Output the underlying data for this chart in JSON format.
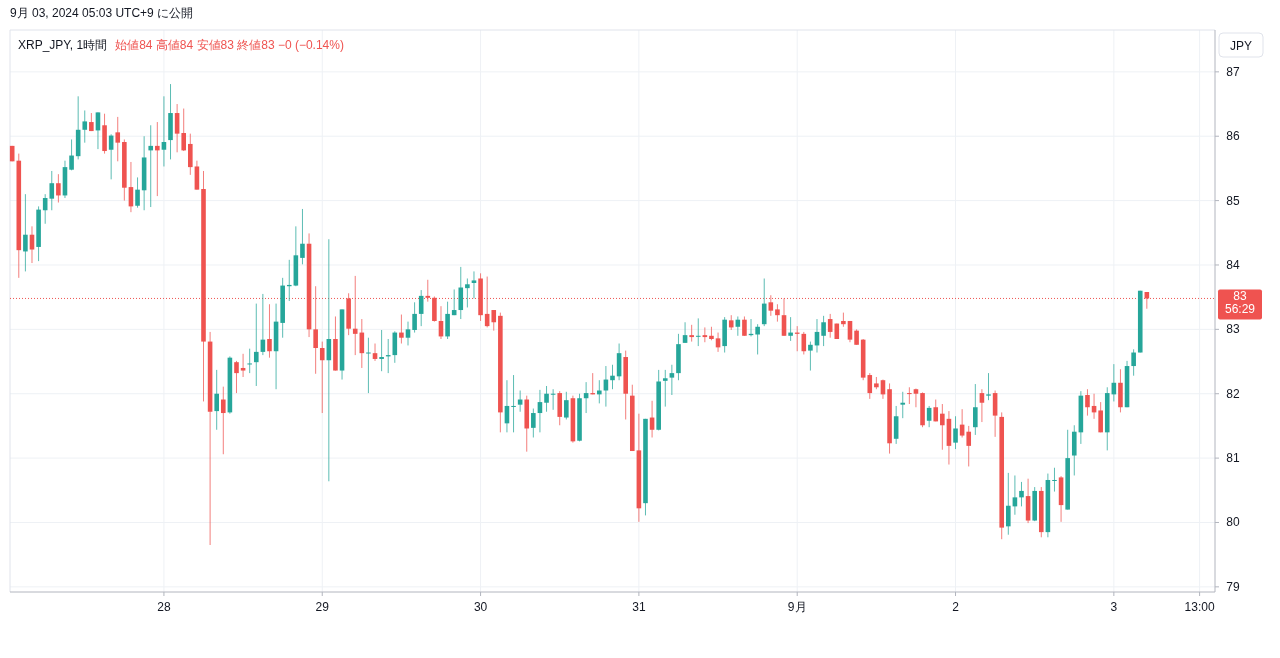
{
  "chart_data": {
    "type": "candlestick",
    "title": "XRP_JPY, 1時間",
    "subtitle": "始値84 高値84 安値83 終値83 −0 (−0.14%)",
    "ylabel": "JPY",
    "annotations": [
      "9月 03, 2024 05:03 UTC+9 に公開"
    ],
    "x": [
      "2024-08-27T01:00",
      "2024-08-27T02:00",
      "2024-08-27T03:00",
      "2024-08-27T04:00",
      "2024-08-27T05:00",
      "2024-08-27T06:00",
      "2024-08-27T07:00",
      "2024-08-27T08:00",
      "2024-08-27T09:00",
      "2024-08-27T10:00",
      "2024-08-27T11:00",
      "2024-08-27T12:00",
      "2024-08-27T13:00",
      "2024-08-27T14:00",
      "2024-08-27T15:00",
      "2024-08-27T16:00",
      "2024-08-27T17:00",
      "2024-08-27T18:00",
      "2024-08-27T19:00",
      "2024-08-27T20:00",
      "2024-08-27T21:00",
      "2024-08-27T22:00",
      "2024-08-27T23:00",
      "2024-08-28T00:00",
      "2024-08-28T01:00",
      "2024-08-28T02:00",
      "2024-08-28T03:00",
      "2024-08-28T04:00",
      "2024-08-28T05:00",
      "2024-08-28T06:00",
      "2024-08-28T07:00",
      "2024-08-28T08:00",
      "2024-08-28T09:00",
      "2024-08-28T10:00",
      "2024-08-28T11:00",
      "2024-08-28T12:00",
      "2024-08-28T13:00",
      "2024-08-28T14:00",
      "2024-08-28T15:00",
      "2024-08-28T16:00",
      "2024-08-28T17:00",
      "2024-08-28T18:00",
      "2024-08-28T19:00",
      "2024-08-28T20:00",
      "2024-08-28T21:00",
      "2024-08-28T22:00",
      "2024-08-28T23:00",
      "2024-08-29T00:00",
      "2024-08-29T01:00",
      "2024-08-29T02:00",
      "2024-08-29T03:00",
      "2024-08-29T04:00",
      "2024-08-29T05:00",
      "2024-08-29T06:00",
      "2024-08-29T07:00",
      "2024-08-29T08:00",
      "2024-08-29T09:00",
      "2024-08-29T10:00",
      "2024-08-29T11:00",
      "2024-08-29T12:00",
      "2024-08-29T13:00",
      "2024-08-29T14:00",
      "2024-08-29T15:00",
      "2024-08-29T16:00",
      "2024-08-29T17:00",
      "2024-08-29T18:00",
      "2024-08-29T19:00",
      "2024-08-29T20:00",
      "2024-08-29T21:00",
      "2024-08-29T22:00",
      "2024-08-29T23:00",
      "2024-08-30T00:00",
      "2024-08-30T01:00",
      "2024-08-30T02:00",
      "2024-08-30T03:00",
      "2024-08-30T04:00",
      "2024-08-30T05:00",
      "2024-08-30T06:00",
      "2024-08-30T07:00",
      "2024-08-30T08:00",
      "2024-08-30T09:00",
      "2024-08-30T10:00",
      "2024-08-30T11:00",
      "2024-08-30T12:00",
      "2024-08-30T13:00",
      "2024-08-30T14:00",
      "2024-08-30T15:00",
      "2024-08-30T16:00",
      "2024-08-30T17:00",
      "2024-08-30T18:00",
      "2024-08-30T19:00",
      "2024-08-30T20:00",
      "2024-08-30T21:00",
      "2024-08-30T22:00",
      "2024-08-30T23:00",
      "2024-08-31T00:00",
      "2024-08-31T01:00",
      "2024-08-31T02:00",
      "2024-08-31T03:00",
      "2024-08-31T04:00",
      "2024-08-31T05:00",
      "2024-08-31T06:00",
      "2024-08-31T07:00",
      "2024-08-31T08:00",
      "2024-08-31T09:00",
      "2024-08-31T10:00",
      "2024-08-31T11:00",
      "2024-08-31T12:00",
      "2024-08-31T13:00",
      "2024-08-31T14:00",
      "2024-08-31T15:00",
      "2024-08-31T16:00",
      "2024-08-31T17:00",
      "2024-08-31T18:00",
      "2024-08-31T19:00",
      "2024-08-31T20:00",
      "2024-08-31T21:00",
      "2024-08-31T22:00",
      "2024-08-31T23:00",
      "2024-09-01T00:00",
      "2024-09-01T01:00",
      "2024-09-01T02:00",
      "2024-09-01T03:00",
      "2024-09-01T04:00",
      "2024-09-01T05:00",
      "2024-09-01T06:00",
      "2024-09-01T07:00",
      "2024-09-01T08:00",
      "2024-09-01T09:00",
      "2024-09-01T10:00",
      "2024-09-01T11:00",
      "2024-09-01T12:00",
      "2024-09-01T13:00",
      "2024-09-01T14:00",
      "2024-09-01T15:00",
      "2024-09-01T16:00",
      "2024-09-01T17:00",
      "2024-09-01T18:00",
      "2024-09-01T19:00",
      "2024-09-01T20:00",
      "2024-09-01T21:00",
      "2024-09-01T22:00",
      "2024-09-01T23:00",
      "2024-09-02T00:00",
      "2024-09-02T01:00",
      "2024-09-02T02:00",
      "2024-09-02T03:00",
      "2024-09-02T04:00",
      "2024-09-02T05:00",
      "2024-09-02T06:00",
      "2024-09-02T07:00",
      "2024-09-02T08:00",
      "2024-09-02T09:00",
      "2024-09-02T10:00",
      "2024-09-02T11:00",
      "2024-09-02T12:00",
      "2024-09-02T13:00",
      "2024-09-02T14:00",
      "2024-09-02T15:00",
      "2024-09-02T16:00",
      "2024-09-02T17:00",
      "2024-09-02T18:00",
      "2024-09-02T19:00",
      "2024-09-02T20:00",
      "2024-09-02T21:00",
      "2024-09-02T22:00",
      "2024-09-02T23:00",
      "2024-09-03T00:00",
      "2024-09-03T01:00",
      "2024-09-03T02:00",
      "2024-09-03T03:00",
      "2024-09-03T04:00",
      "2024-09-03T05:00"
    ],
    "ohlc": [
      [
        85.85,
        85.85,
        85.61,
        85.61
      ],
      [
        85.62,
        85.73,
        83.8,
        84.23
      ],
      [
        84.21,
        85.1,
        83.9,
        84.47
      ],
      [
        84.47,
        84.6,
        84.03,
        84.24
      ],
      [
        84.28,
        84.91,
        84.06,
        84.86
      ],
      [
        84.85,
        85.1,
        84.64,
        85.04
      ],
      [
        85.03,
        85.46,
        84.85,
        85.27
      ],
      [
        85.27,
        85.41,
        84.97,
        85.08
      ],
      [
        85.08,
        85.62,
        85.04,
        85.52
      ],
      [
        85.48,
        85.95,
        85.47,
        85.7
      ],
      [
        85.69,
        86.62,
        85.64,
        86.1
      ],
      [
        86.1,
        86.4,
        85.9,
        86.23
      ],
      [
        86.22,
        86.36,
        86.08,
        86.08
      ],
      [
        86.09,
        86.37,
        85.8,
        86.37
      ],
      [
        86.17,
        86.35,
        85.73,
        85.77
      ],
      [
        85.79,
        86.03,
        85.33,
        86.01
      ],
      [
        86.06,
        86.3,
        85.61,
        85.9
      ],
      [
        85.91,
        85.95,
        85.0,
        85.2
      ],
      [
        85.21,
        85.6,
        84.82,
        84.91
      ],
      [
        84.92,
        85.36,
        84.89,
        85.17
      ],
      [
        85.16,
        86.0,
        84.85,
        85.67
      ],
      [
        85.78,
        86.17,
        84.9,
        85.85
      ],
      [
        85.85,
        86.22,
        85.07,
        85.78
      ],
      [
        85.79,
        86.62,
        85.53,
        85.91
      ],
      [
        85.94,
        86.81,
        85.64,
        86.36
      ],
      [
        86.36,
        86.5,
        85.75,
        86.04
      ],
      [
        86.05,
        86.43,
        85.77,
        85.78
      ],
      [
        85.88,
        86.04,
        85.4,
        85.52
      ],
      [
        85.53,
        85.62,
        85.17,
        85.17
      ],
      [
        85.18,
        85.46,
        81.88,
        82.81
      ],
      [
        82.81,
        82.96,
        79.65,
        81.72
      ],
      [
        81.73,
        82.37,
        81.44,
        82.0
      ],
      [
        81.91,
        82.11,
        81.06,
        81.7
      ],
      [
        81.71,
        82.58,
        81.69,
        82.56
      ],
      [
        82.49,
        82.51,
        82.01,
        82.32
      ],
      [
        82.4,
        82.62,
        82.26,
        82.36
      ],
      [
        82.46,
        82.7,
        82.32,
        82.47
      ],
      [
        82.49,
        83.4,
        82.12,
        82.65
      ],
      [
        82.65,
        83.55,
        82.6,
        82.84
      ],
      [
        82.85,
        83.39,
        82.56,
        82.66
      ],
      [
        82.66,
        83.4,
        82.07,
        83.12
      ],
      [
        83.1,
        83.8,
        82.87,
        83.68
      ],
      [
        83.67,
        84.08,
        83.44,
        83.69
      ],
      [
        83.68,
        84.6,
        83.67,
        84.15
      ],
      [
        84.11,
        84.87,
        84.01,
        84.33
      ],
      [
        84.33,
        84.49,
        82.88,
        83.0
      ],
      [
        83.0,
        83.67,
        82.31,
        82.71
      ],
      [
        82.71,
        82.81,
        81.7,
        82.52
      ],
      [
        82.52,
        84.4,
        80.64,
        82.85
      ],
      [
        82.85,
        83.2,
        82.36,
        82.36
      ],
      [
        82.36,
        83.31,
        82.22,
        83.31
      ],
      [
        83.48,
        83.56,
        82.91,
        83.01
      ],
      [
        83.01,
        83.83,
        82.6,
        82.93
      ],
      [
        82.95,
        83.16,
        82.4,
        82.63
      ],
      [
        82.63,
        82.87,
        82.01,
        82.64
      ],
      [
        82.63,
        82.78,
        82.51,
        82.54
      ],
      [
        82.54,
        82.99,
        82.35,
        82.57
      ],
      [
        82.58,
        82.85,
        82.32,
        82.6
      ],
      [
        82.6,
        82.97,
        82.48,
        82.95
      ],
      [
        82.95,
        83.23,
        82.78,
        82.87
      ],
      [
        82.87,
        83.12,
        82.75,
        83.0
      ],
      [
        82.99,
        83.42,
        82.95,
        83.24
      ],
      [
        83.24,
        83.61,
        83.05,
        83.52
      ],
      [
        83.52,
        83.77,
        83.43,
        83.49
      ],
      [
        83.49,
        83.51,
        83.12,
        83.13
      ],
      [
        83.13,
        83.36,
        82.85,
        82.89
      ],
      [
        82.89,
        83.43,
        82.85,
        83.24
      ],
      [
        83.22,
        83.62,
        83.22,
        83.3
      ],
      [
        83.3,
        83.97,
        83.16,
        83.65
      ],
      [
        83.64,
        83.79,
        83.34,
        83.7
      ],
      [
        83.72,
        83.9,
        83.48,
        83.76
      ],
      [
        83.79,
        83.87,
        83.13,
        83.22
      ],
      [
        83.24,
        83.82,
        83.03,
        83.05
      ],
      [
        83.3,
        83.3,
        82.98,
        83.11
      ],
      [
        83.21,
        83.26,
        81.4,
        81.71
      ],
      [
        81.54,
        82.21,
        81.4,
        81.81
      ],
      [
        81.8,
        82.29,
        81.4,
        81.81
      ],
      [
        81.83,
        82.05,
        81.72,
        81.91
      ],
      [
        81.91,
        81.97,
        81.1,
        81.46
      ],
      [
        81.47,
        81.77,
        81.32,
        81.7
      ],
      [
        81.7,
        82.06,
        81.4,
        81.87
      ],
      [
        81.86,
        82.12,
        81.72,
        82.0
      ],
      [
        81.99,
        82.07,
        81.75,
        82.0
      ],
      [
        82.01,
        82.04,
        81.51,
        81.64
      ],
      [
        81.63,
        82.03,
        81.6,
        81.9
      ],
      [
        81.93,
        81.97,
        81.24,
        81.26
      ],
      [
        81.27,
        82.0,
        81.26,
        81.93
      ],
      [
        81.93,
        82.18,
        81.7,
        82.01
      ],
      [
        82.01,
        82.32,
        81.99,
        81.99
      ],
      [
        81.99,
        82.21,
        81.85,
        82.05
      ],
      [
        82.05,
        82.43,
        81.8,
        82.22
      ],
      [
        82.21,
        82.45,
        82.07,
        82.28
      ],
      [
        82.27,
        82.78,
        82.21,
        82.63
      ],
      [
        82.57,
        82.67,
        81.6,
        82.0
      ],
      [
        81.97,
        82.14,
        81.11,
        81.11
      ],
      [
        81.12,
        81.69,
        80.01,
        80.22
      ],
      [
        80.3,
        81.61,
        80.11,
        81.61
      ],
      [
        81.63,
        81.89,
        81.32,
        81.44
      ],
      [
        81.44,
        82.37,
        81.43,
        82.19
      ],
      [
        82.2,
        82.37,
        81.8,
        82.24
      ],
      [
        82.25,
        82.45,
        81.98,
        82.32
      ],
      [
        82.32,
        82.93,
        82.21,
        82.77
      ],
      [
        82.79,
        83.11,
        82.79,
        82.91
      ],
      [
        82.91,
        83.07,
        82.81,
        82.88
      ],
      [
        82.89,
        83.17,
        82.74,
        82.9
      ],
      [
        82.91,
        83.03,
        82.8,
        82.88
      ],
      [
        82.9,
        83.04,
        82.83,
        82.85
      ],
      [
        82.86,
        82.95,
        82.65,
        82.72
      ],
      [
        82.74,
        83.19,
        82.64,
        83.15
      ],
      [
        83.14,
        83.22,
        82.99,
        83.03
      ],
      [
        83.04,
        83.2,
        82.9,
        83.15
      ],
      [
        83.15,
        83.2,
        82.9,
        82.9
      ],
      [
        82.91,
        83.16,
        82.89,
        82.93
      ],
      [
        82.92,
        83.08,
        82.61,
        83.04
      ],
      [
        83.08,
        83.79,
        83.05,
        83.4
      ],
      [
        83.42,
        83.53,
        83.21,
        83.29
      ],
      [
        83.31,
        83.39,
        83.12,
        83.22
      ],
      [
        83.22,
        83.48,
        82.9,
        82.9
      ],
      [
        82.9,
        83.19,
        82.82,
        82.95
      ],
      [
        82.95,
        83.05,
        82.66,
        82.93
      ],
      [
        82.93,
        82.96,
        82.61,
        82.66
      ],
      [
        82.67,
        82.81,
        82.36,
        82.76
      ],
      [
        82.75,
        83.16,
        82.64,
        82.96
      ],
      [
        82.9,
        83.21,
        82.74,
        83.11
      ],
      [
        83.16,
        83.24,
        82.87,
        82.96
      ],
      [
        83.09,
        83.09,
        82.85,
        82.85
      ],
      [
        83.13,
        83.26,
        83.04,
        83.08
      ],
      [
        83.13,
        83.13,
        82.8,
        82.84
      ],
      [
        82.98,
        83.0,
        82.76,
        82.76
      ],
      [
        82.84,
        82.85,
        82.21,
        82.25
      ],
      [
        82.29,
        82.32,
        81.92,
        82.01
      ],
      [
        82.16,
        82.26,
        82.07,
        82.1
      ],
      [
        82.21,
        82.22,
        81.92,
        81.99
      ],
      [
        82.07,
        82.16,
        81.07,
        81.23
      ],
      [
        81.3,
        81.81,
        81.22,
        81.65
      ],
      [
        81.83,
        82.03,
        81.62,
        81.86
      ],
      [
        82.01,
        82.1,
        81.84,
        82.0
      ],
      [
        82.07,
        82.08,
        81.79,
        82.0
      ],
      [
        82.01,
        82.02,
        81.48,
        81.51
      ],
      [
        81.58,
        81.81,
        81.48,
        81.78
      ],
      [
        81.79,
        81.91,
        81.57,
        81.57
      ],
      [
        81.69,
        81.84,
        81.13,
        81.51
      ],
      [
        81.61,
        81.73,
        80.9,
        81.19
      ],
      [
        81.24,
        81.65,
        81.14,
        81.46
      ],
      [
        81.52,
        81.76,
        81.32,
        81.35
      ],
      [
        81.41,
        81.5,
        80.87,
        81.19
      ],
      [
        81.48,
        82.15,
        81.36,
        81.79
      ],
      [
        82.01,
        82.07,
        81.56,
        81.86
      ],
      [
        81.97,
        82.32,
        81.9,
        81.99
      ],
      [
        82.01,
        82.05,
        81.33,
        81.66
      ],
      [
        81.64,
        81.71,
        79.74,
        79.92
      ],
      [
        79.94,
        80.77,
        79.81,
        80.26
      ],
      [
        80.25,
        80.73,
        80.12,
        80.39
      ],
      [
        80.39,
        80.63,
        80.25,
        80.49
      ],
      [
        80.41,
        80.68,
        79.99,
        80.03
      ],
      [
        80.03,
        80.55,
        80.02,
        80.49
      ],
      [
        80.49,
        80.55,
        79.77,
        79.85
      ],
      [
        79.85,
        80.76,
        79.77,
        80.66
      ],
      [
        80.65,
        80.85,
        80.48,
        80.66
      ],
      [
        80.7,
        80.72,
        80.01,
        80.27
      ],
      [
        80.2,
        81.44,
        80.2,
        81.0
      ],
      [
        81.04,
        81.51,
        80.73,
        81.41
      ],
      [
        81.4,
        82.04,
        81.22,
        81.97
      ],
      [
        81.98,
        82.07,
        81.66,
        81.79
      ],
      [
        81.81,
        82.0,
        81.61,
        81.71
      ],
      [
        81.74,
        81.87,
        81.4,
        81.4
      ],
      [
        81.4,
        82.1,
        81.12,
        82.01
      ],
      [
        81.99,
        82.46,
        81.88,
        82.17
      ],
      [
        82.17,
        82.38,
        81.71,
        81.79
      ],
      [
        81.79,
        82.51,
        81.79,
        82.43
      ],
      [
        82.43,
        82.69,
        82.28,
        82.64
      ],
      [
        82.64,
        83.6,
        82.64,
        83.6
      ],
      [
        83.58,
        83.58,
        83.32,
        83.48
      ]
    ],
    "colors": [
      "#ef5350",
      "#ef5350",
      "#26a69a",
      "#ef5350",
      "#26a69a",
      "#26a69a",
      "#26a69a",
      "#ef5350",
      "#26a69a",
      "#26a69a",
      "#26a69a",
      "#26a69a",
      "#ef5350",
      "#26a69a",
      "#ef5350",
      "#26a69a",
      "#ef5350",
      "#ef5350",
      "#ef5350",
      "#26a69a",
      "#26a69a",
      "#26a69a",
      "#ef5350",
      "#26a69a",
      "#26a69a",
      "#ef5350",
      "#ef5350",
      "#ef5350",
      "#ef5350",
      "#ef5350",
      "#ef5350",
      "#26a69a",
      "#ef5350",
      "#26a69a",
      "#ef5350",
      "#ef5350",
      "#26a69a",
      "#26a69a",
      "#26a69a",
      "#ef5350",
      "#26a69a",
      "#26a69a",
      "#26a69a",
      "#26a69a",
      "#26a69a",
      "#ef5350",
      "#ef5350",
      "#ef5350",
      "#26a69a",
      "#ef5350",
      "#26a69a",
      "#ef5350",
      "#ef5350",
      "#ef5350",
      "#26a69a",
      "#ef5350",
      "#26a69a",
      "#26a69a",
      "#26a69a",
      "#ef5350",
      "#26a69a",
      "#26a69a",
      "#26a69a",
      "#ef5350",
      "#ef5350",
      "#ef5350",
      "#26a69a",
      "#26a69a",
      "#26a69a",
      "#26a69a",
      "#26a69a",
      "#ef5350",
      "#ef5350",
      "#ef5350",
      "#ef5350",
      "#26a69a",
      "#26a69a",
      "#26a69a",
      "#ef5350",
      "#26a69a",
      "#26a69a",
      "#26a69a",
      "#26a69a",
      "#ef5350",
      "#26a69a",
      "#ef5350",
      "#26a69a",
      "#26a69a",
      "#ef5350",
      "#26a69a",
      "#26a69a",
      "#26a69a",
      "#26a69a",
      "#ef5350",
      "#ef5350",
      "#ef5350",
      "#26a69a",
      "#ef5350",
      "#26a69a",
      "#26a69a",
      "#26a69a",
      "#26a69a",
      "#26a69a",
      "#ef5350",
      "#26a69a",
      "#ef5350",
      "#ef5350",
      "#ef5350",
      "#26a69a",
      "#ef5350",
      "#26a69a",
      "#ef5350",
      "#26a69a",
      "#26a69a",
      "#26a69a",
      "#ef5350",
      "#ef5350",
      "#ef5350",
      "#26a69a",
      "#ef5350",
      "#ef5350",
      "#26a69a",
      "#26a69a",
      "#26a69a",
      "#ef5350",
      "#ef5350",
      "#ef5350",
      "#ef5350",
      "#ef5350",
      "#ef5350",
      "#ef5350",
      "#ef5350",
      "#ef5350",
      "#ef5350",
      "#26a69a",
      "#26a69a",
      "#ef5350",
      "#ef5350",
      "#ef5350",
      "#26a69a",
      "#ef5350",
      "#ef5350",
      "#ef5350",
      "#26a69a",
      "#ef5350",
      "#ef5350",
      "#26a69a",
      "#ef5350",
      "#26a69a",
      "#ef5350",
      "#ef5350",
      "#26a69a",
      "#26a69a",
      "#26a69a",
      "#ef5350",
      "#26a69a",
      "#ef5350",
      "#26a69a",
      "#26a69a",
      "#ef5350",
      "#26a69a",
      "#26a69a",
      "#26a69a",
      "#ef5350",
      "#ef5350",
      "#ef5350",
      "#26a69a",
      "#26a69a",
      "#ef5350",
      "#26a69a",
      "#26a69a",
      "#26a69a",
      "#ef5350"
    ],
    "xlim": [
      "2024-08-27T00:40",
      "2024-09-03T15:20"
    ],
    "xticks": [
      {
        "value": "2024-08-28T00:00",
        "label": "28"
      },
      {
        "value": "2024-08-29T00:00",
        "label": "29"
      },
      {
        "value": "2024-08-30T00:00",
        "label": "30"
      },
      {
        "value": "2024-08-31T00:00",
        "label": "31"
      },
      {
        "value": "2024-09-01T00:00",
        "label": "9月"
      },
      {
        "value": "2024-09-02T00:00",
        "label": "2"
      },
      {
        "value": "2024-09-03T00:00",
        "label": "3"
      },
      {
        "value": "2024-09-03T13:00",
        "label": "13:00"
      }
    ],
    "ylim": [
      78.92,
      87.65
    ],
    "yticks": [
      79,
      80,
      81,
      82,
      83,
      84,
      85,
      86,
      87
    ],
    "ref_lines": [
      {
        "axis": "y",
        "value": 83.48,
        "label": "83 56:29",
        "color": "#ef5350",
        "line_style": "dotted"
      }
    ],
    "grid": true
  }
}
